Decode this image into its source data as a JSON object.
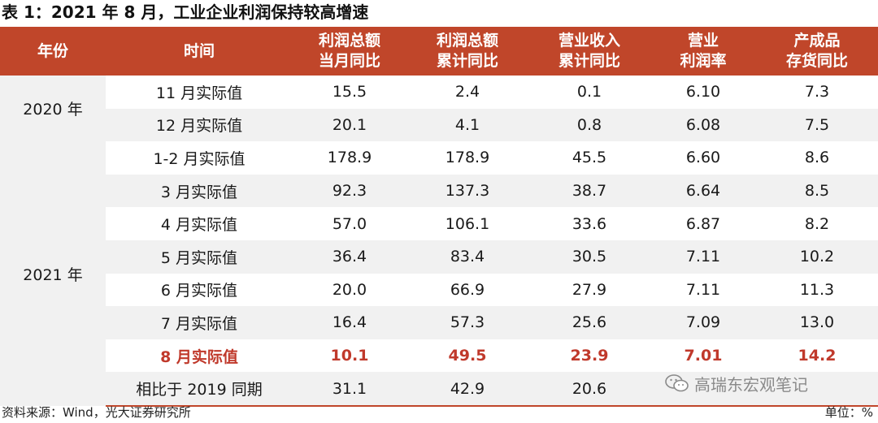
{
  "title": "表 1：2021 年 8 月，工业企业利润保持较高增速",
  "columns": [
    {
      "line1": "年份",
      "line2": ""
    },
    {
      "line1": "时间",
      "line2": ""
    },
    {
      "line1": "利润总额",
      "line2": "当月同比"
    },
    {
      "line1": "利润总额",
      "line2": "累计同比"
    },
    {
      "line1": "营业收入",
      "line2": "累计同比"
    },
    {
      "line1": "营业",
      "line2": "利润率"
    },
    {
      "line1": "产成品",
      "line2": "存货同比"
    }
  ],
  "year_groups": [
    {
      "label": "2020 年"
    },
    {
      "label": "2021 年"
    }
  ],
  "rows": [
    {
      "time": "11 月实际值",
      "v": [
        "15.5",
        "2.4",
        "0.1",
        "6.10",
        "7.3"
      ]
    },
    {
      "time": "12 月实际值",
      "v": [
        "20.1",
        "4.1",
        "0.8",
        "6.08",
        "7.5"
      ]
    },
    {
      "time": "1-2 月实际值",
      "v": [
        "178.9",
        "178.9",
        "45.5",
        "6.60",
        "8.6"
      ]
    },
    {
      "time": "3 月实际值",
      "v": [
        "92.3",
        "137.3",
        "38.7",
        "6.64",
        "8.5"
      ]
    },
    {
      "time": "4 月实际值",
      "v": [
        "57.0",
        "106.1",
        "33.6",
        "6.87",
        "8.2"
      ]
    },
    {
      "time": "5 月实际值",
      "v": [
        "36.4",
        "83.4",
        "30.5",
        "7.11",
        "10.2"
      ]
    },
    {
      "time": "6 月实际值",
      "v": [
        "20.0",
        "66.9",
        "27.9",
        "7.11",
        "11.3"
      ]
    },
    {
      "time": "7 月实际值",
      "v": [
        "16.4",
        "57.3",
        "25.6",
        "7.09",
        "13.0"
      ]
    },
    {
      "time": "8 月实际值",
      "v": [
        "10.1",
        "49.5",
        "23.9",
        "7.01",
        "14.2"
      ]
    },
    {
      "time": "相比于 2019 同期",
      "v": [
        "31.1",
        "42.9",
        "20.6",
        "",
        ""
      ]
    }
  ],
  "footer": {
    "source": "资料来源：Wind，光大证券研究所",
    "unit": "单位：%"
  },
  "watermark": {
    "text": "高瑞东宏观笔记",
    "icon": "wechat-icon"
  },
  "colors": {
    "header_bg": "#c0462a",
    "highlight_text": "#c0392b",
    "shade": "#f1f1f1"
  }
}
